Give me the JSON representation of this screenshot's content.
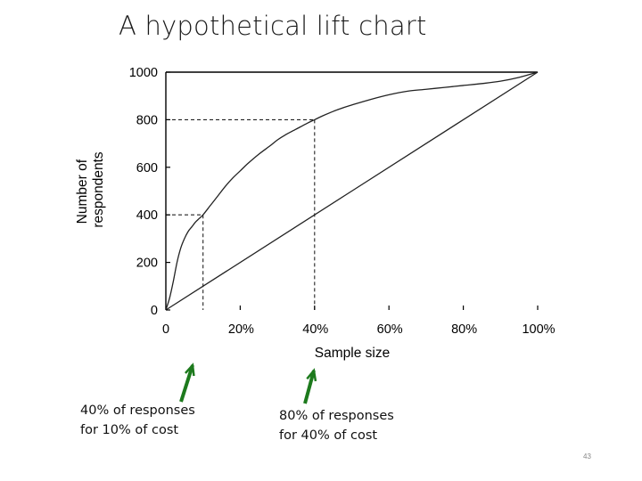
{
  "slide": {
    "title": "A hypothetical lift chart",
    "page_number": "43"
  },
  "annotations": [
    {
      "text": "40% of responses\nfor 10% of cost",
      "color": "#1d7a1d"
    },
    {
      "text": "80% of responses\nfor 40% of cost",
      "color": "#1d7a1d"
    }
  ],
  "chart_data": {
    "type": "line",
    "title": "A hypothetical lift chart",
    "xlabel": "Sample size",
    "ylabel": "Number of respondents",
    "xlim": [
      0,
      100
    ],
    "ylim": [
      0,
      1000
    ],
    "x_ticks": [
      0,
      20,
      40,
      60,
      80,
      100
    ],
    "x_tick_labels": [
      "0",
      "20%",
      "40%",
      "60%",
      "80%",
      "100%"
    ],
    "y_ticks": [
      0,
      200,
      400,
      600,
      800,
      1000
    ],
    "y_tick_labels": [
      "0",
      "200",
      "400",
      "600",
      "800",
      "1000"
    ],
    "grid": false,
    "series": [
      {
        "x": [
          0,
          1,
          2,
          3,
          4,
          5,
          6,
          7,
          8,
          9,
          10,
          12,
          14,
          16,
          18,
          20,
          22,
          25,
          28,
          30,
          32,
          35,
          38,
          40,
          42,
          45,
          48,
          50,
          55,
          60,
          65,
          70,
          75,
          80,
          85,
          90,
          95,
          100
        ],
        "values": [
          0,
          50,
          120,
          200,
          260,
          300,
          330,
          350,
          370,
          385,
          400,
          440,
          480,
          520,
          555,
          585,
          615,
          655,
          690,
          715,
          735,
          760,
          785,
          800,
          815,
          835,
          852,
          862,
          885,
          905,
          920,
          928,
          936,
          944,
          952,
          962,
          978,
          1000
        ]
      },
      {
        "x": [
          0,
          100
        ],
        "values": [
          0,
          1000
        ]
      }
    ],
    "reference_points": [
      {
        "x": 10,
        "y": 400
      },
      {
        "x": 40,
        "y": 800
      }
    ]
  }
}
